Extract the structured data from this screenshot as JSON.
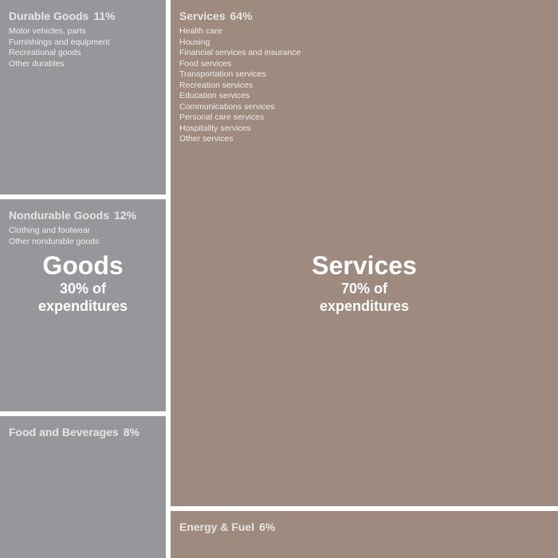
{
  "chart_data": {
    "type": "treemap",
    "colors": {
      "goods": "#95979a",
      "services": "#9e8a7e",
      "separator": "#ffffff"
    },
    "groups": [
      {
        "key": "goods",
        "name": "Goods",
        "share_label": "30% of expenditures",
        "value": 30,
        "categories": [
          {
            "name": "Durable Goods",
            "pct_label": "11%",
            "value": 11,
            "items": [
              "Motor vehicles, parts",
              "Furnishings and equipment",
              "Recreational goods",
              "Other durables"
            ]
          },
          {
            "name": "Nondurable Goods",
            "pct_label": "12%",
            "value": 12,
            "items": [
              "Clothing and footwear",
              "Other nondurable goods"
            ]
          },
          {
            "name": "Food and Beverages",
            "pct_label": "8%",
            "value": 8,
            "items": []
          }
        ]
      },
      {
        "key": "services",
        "name": "Services",
        "share_label": "70% of expenditures",
        "value": 70,
        "categories": [
          {
            "name": "Services",
            "pct_label": "64%",
            "value": 64,
            "items": [
              "Health care",
              "Housing",
              "Financial services and insurance",
              "Food services",
              "Transportation services",
              "Recreation services",
              "Education services",
              "Communications services",
              "Personal care services",
              "Hospitality services",
              "Other services"
            ]
          },
          {
            "name": "Energy & Fuel",
            "pct_label": "6%",
            "value": 6,
            "items": []
          }
        ]
      }
    ]
  }
}
